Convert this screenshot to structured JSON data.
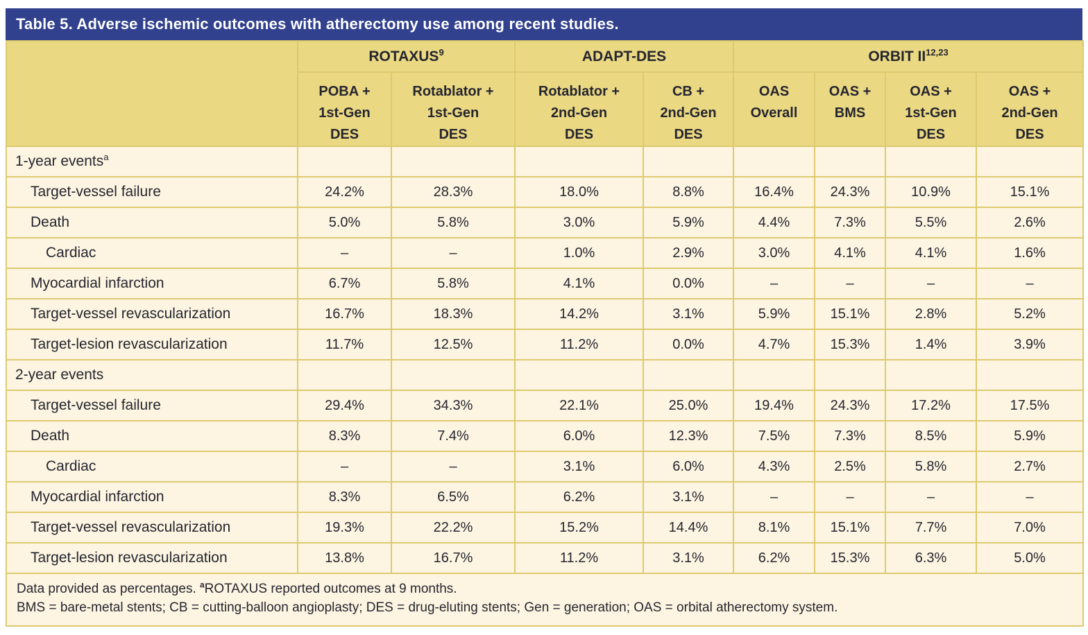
{
  "title": "Table 5. Adverse ischemic outcomes with atherectomy use among recent studies.",
  "colors": {
    "title_bar": "#32418e",
    "header_bg": "#ead883",
    "body_bg": "#fdf5e2",
    "border": "#ddca6e",
    "title_text": "#ffffff",
    "text": "#25252e"
  },
  "table": {
    "groups": [
      {
        "label": "ROTAXUS",
        "sup": "9"
      },
      {
        "label": "ADAPT-DES",
        "sup": ""
      },
      {
        "label": "ORBIT II",
        "sup": "12,23"
      }
    ],
    "columns": [
      "POBA +\n1st-Gen\nDES",
      "Rotablator +\n1st-Gen\nDES",
      "Rotablator +\n2nd-Gen\nDES",
      "CB +\n2nd-Gen\nDES",
      "OAS\nOverall",
      "OAS +\nBMS",
      "OAS +\n1st-Gen\nDES",
      "OAS +\n2nd-Gen\nDES"
    ],
    "rows": [
      {
        "label": "1-year events",
        "sup": "a",
        "section": true,
        "indent": 0,
        "values": [
          "",
          "",
          "",
          "",
          "",
          "",
          "",
          ""
        ]
      },
      {
        "label": "Target-vessel failure",
        "sup": "",
        "section": false,
        "indent": 1,
        "values": [
          "24.2%",
          "28.3%",
          "18.0%",
          "8.8%",
          "16.4%",
          "24.3%",
          "10.9%",
          "15.1%"
        ]
      },
      {
        "label": "Death",
        "sup": "",
        "section": false,
        "indent": 1,
        "values": [
          "5.0%",
          "5.8%",
          "3.0%",
          "5.9%",
          "4.4%",
          "7.3%",
          "5.5%",
          "2.6%"
        ]
      },
      {
        "label": "Cardiac",
        "sup": "",
        "section": false,
        "indent": 2,
        "values": [
          "–",
          "–",
          "1.0%",
          "2.9%",
          "3.0%",
          "4.1%",
          "4.1%",
          "1.6%"
        ]
      },
      {
        "label": "Myocardial infarction",
        "sup": "",
        "section": false,
        "indent": 1,
        "values": [
          "6.7%",
          "5.8%",
          "4.1%",
          "0.0%",
          "–",
          "–",
          "–",
          "–"
        ]
      },
      {
        "label": "Target-vessel revascularization",
        "sup": "",
        "section": false,
        "indent": 1,
        "values": [
          "16.7%",
          "18.3%",
          "14.2%",
          "3.1%",
          "5.9%",
          "15.1%",
          "2.8%",
          "5.2%"
        ]
      },
      {
        "label": "Target-lesion revascularization",
        "sup": "",
        "section": false,
        "indent": 1,
        "values": [
          "11.7%",
          "12.5%",
          "11.2%",
          "0.0%",
          "4.7%",
          "15.3%",
          "1.4%",
          "3.9%"
        ]
      },
      {
        "label": "2-year events",
        "sup": "",
        "section": true,
        "indent": 0,
        "values": [
          "",
          "",
          "",
          "",
          "",
          "",
          "",
          ""
        ]
      },
      {
        "label": "Target-vessel failure",
        "sup": "",
        "section": false,
        "indent": 1,
        "values": [
          "29.4%",
          "34.3%",
          "22.1%",
          "25.0%",
          "19.4%",
          "24.3%",
          "17.2%",
          "17.5%"
        ]
      },
      {
        "label": "Death",
        "sup": "",
        "section": false,
        "indent": 1,
        "values": [
          "8.3%",
          "7.4%",
          "6.0%",
          "12.3%",
          "7.5%",
          "7.3%",
          "8.5%",
          "5.9%"
        ]
      },
      {
        "label": "Cardiac",
        "sup": "",
        "section": false,
        "indent": 2,
        "values": [
          "–",
          "–",
          "3.1%",
          "6.0%",
          "4.3%",
          "2.5%",
          "5.8%",
          "2.7%"
        ]
      },
      {
        "label": "Myocardial infarction",
        "sup": "",
        "section": false,
        "indent": 1,
        "values": [
          "8.3%",
          "6.5%",
          "6.2%",
          "3.1%",
          "–",
          "–",
          "–",
          "–"
        ]
      },
      {
        "label": "Target-vessel revascularization",
        "sup": "",
        "section": false,
        "indent": 1,
        "values": [
          "19.3%",
          "22.2%",
          "15.2%",
          "14.4%",
          "8.1%",
          "15.1%",
          "7.7%",
          "7.0%"
        ]
      },
      {
        "label": "Target-lesion revascularization",
        "sup": "",
        "section": false,
        "indent": 1,
        "values": [
          "13.8%",
          "16.7%",
          "11.2%",
          "3.1%",
          "6.2%",
          "15.3%",
          "6.3%",
          "5.0%"
        ]
      }
    ]
  },
  "footnotes": {
    "line1_pre": "Data provided as percentages. ",
    "line1_sup": "a",
    "line1_post": "ROTAXUS reported outcomes at 9 months.",
    "line2": "BMS = bare-metal stents; CB = cutting-balloon angioplasty; DES = drug-eluting stents; Gen = generation; OAS = orbital atherectomy system."
  }
}
